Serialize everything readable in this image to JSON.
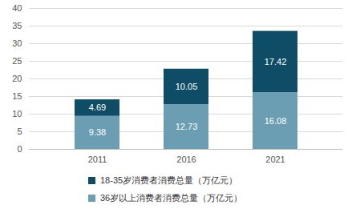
{
  "chart_data": {
    "type": "bar",
    "stacked": true,
    "data_labels": true,
    "grid": true,
    "legend": "bottom",
    "categories": [
      "2011",
      "2016",
      "2021"
    ],
    "series": [
      {
        "name": "36岁以上消费者消费总量（万亿元）",
        "color": "#6b9db3",
        "values": [
          9.38,
          12.73,
          16.08
        ]
      },
      {
        "name": "18-35岁消费者消费总量（万亿元）",
        "color": "#0f4d66",
        "values": [
          4.69,
          10.05,
          17.42
        ]
      }
    ],
    "ylim": [
      0,
      40
    ],
    "yticks": [
      0,
      5,
      10,
      15,
      20,
      25,
      30,
      35,
      40
    ]
  }
}
